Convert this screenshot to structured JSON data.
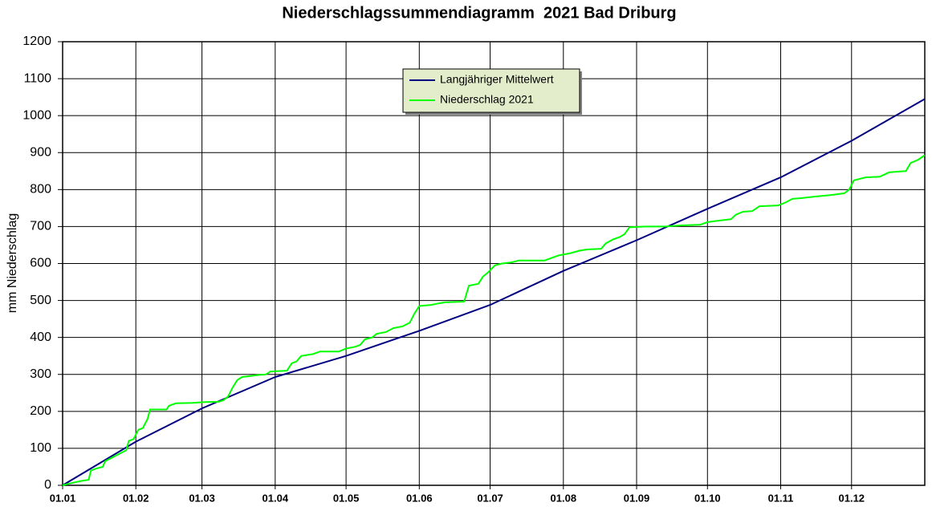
{
  "chart_data": {
    "type": "line",
    "title": "Niederschlagssummendiagramm  2021 Bad Driburg",
    "y_label": "mm Niederschlag",
    "xlim": [
      0,
      365
    ],
    "ylim": [
      0,
      1200
    ],
    "xticks": [
      {
        "value": 0,
        "label": "01.01"
      },
      {
        "value": 31,
        "label": "01.02"
      },
      {
        "value": 59,
        "label": "01.03"
      },
      {
        "value": 90,
        "label": "01.04"
      },
      {
        "value": 120,
        "label": "01.05"
      },
      {
        "value": 151,
        "label": "01.06"
      },
      {
        "value": 181,
        "label": "01.07"
      },
      {
        "value": 212,
        "label": "01.08"
      },
      {
        "value": 243,
        "label": "01.09"
      },
      {
        "value": 273,
        "label": "01.10"
      },
      {
        "value": 304,
        "label": "01.11"
      },
      {
        "value": 334,
        "label": "01.12"
      }
    ],
    "yticks": [
      0,
      100,
      200,
      300,
      400,
      500,
      600,
      700,
      800,
      900,
      1000,
      1100,
      1200
    ],
    "grid": true,
    "legend": "top-center",
    "series": [
      {
        "name": "Langjähriger Mittelwert",
        "color": "#000080",
        "x": [
          0,
          31,
          59,
          90,
          120,
          151,
          181,
          212,
          243,
          273,
          304,
          334,
          365
        ],
        "values": [
          0,
          118,
          208,
          293,
          350,
          418,
          488,
          580,
          663,
          748,
          833,
          932,
          1045
        ]
      },
      {
        "name": "Niederschlag 2021",
        "color": "#00ff00",
        "x": [
          0,
          3,
          8,
          11,
          12,
          14,
          17,
          18,
          21,
          24,
          27,
          28,
          30,
          32,
          34,
          36,
          37,
          44,
          45,
          48,
          55,
          60,
          66,
          68,
          70,
          72,
          74,
          76,
          82,
          86,
          88,
          95,
          97,
          99,
          101,
          106,
          109,
          117,
          120,
          124,
          126,
          128,
          131,
          133,
          137,
          140,
          144,
          147,
          149,
          151,
          156,
          159,
          162,
          170,
          172,
          176,
          178,
          180,
          183,
          186,
          190,
          193,
          204,
          207,
          210,
          215,
          219,
          222,
          228,
          230,
          233,
          236,
          238,
          240,
          247,
          255,
          262,
          270,
          273,
          278,
          283,
          285,
          288,
          292,
          295,
          303,
          306,
          309,
          313,
          320,
          325,
          331,
          333,
          335,
          340,
          346,
          350,
          357,
          359,
          362,
          365
        ],
        "values": [
          0,
          5,
          12,
          15,
          40,
          45,
          50,
          65,
          75,
          85,
          95,
          120,
          125,
          150,
          155,
          180,
          205,
          205,
          215,
          222,
          223,
          225,
          226,
          230,
          240,
          265,
          285,
          293,
          298,
          300,
          308,
          310,
          330,
          335,
          350,
          355,
          362,
          362,
          370,
          375,
          380,
          395,
          400,
          410,
          415,
          425,
          430,
          440,
          465,
          485,
          488,
          492,
          495,
          497,
          540,
          545,
          565,
          575,
          595,
          600,
          603,
          608,
          608,
          615,
          622,
          628,
          635,
          638,
          640,
          655,
          665,
          672,
          680,
          698,
          700,
          700,
          703,
          705,
          712,
          716,
          720,
          732,
          740,
          742,
          755,
          757,
          765,
          775,
          777,
          782,
          785,
          790,
          800,
          825,
          833,
          835,
          847,
          850,
          872,
          880,
          893
        ]
      }
    ]
  }
}
